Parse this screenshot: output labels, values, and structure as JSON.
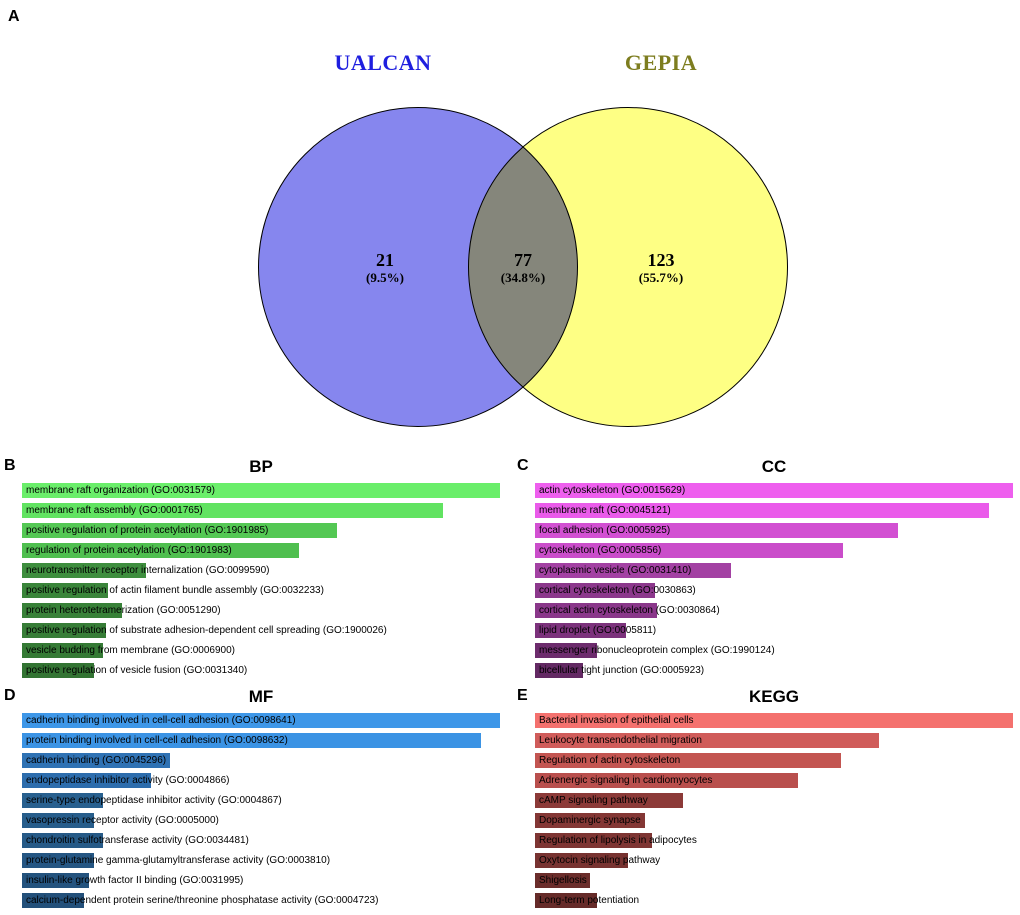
{
  "venn": {
    "panel_label": "A",
    "left_title": "UALCAN",
    "right_title": "GEPIA",
    "left_title_color": "#1f1fdf",
    "right_title_color": "#7d7d1f",
    "left_fill": "#8686ee",
    "right_fill": "#feff84",
    "left_count": "21",
    "left_pct": "(9.5%)",
    "overlap_count": "77",
    "overlap_pct": "(34.8%)",
    "right_count": "123",
    "right_pct": "(55.7%)"
  },
  "chart_data": [
    {
      "type": "venn",
      "panel": "A",
      "groups": [
        {
          "name": "UALCAN",
          "only": 21,
          "only_pct": "9.5%"
        },
        {
          "name": "GEPIA",
          "only": 123,
          "only_pct": "55.7%"
        }
      ],
      "overlap": 77,
      "overlap_pct": "34.8%"
    },
    {
      "type": "bar",
      "panel": "B",
      "title": "BP",
      "orientation": "horizontal",
      "values_are_relative": true,
      "categories": [
        "membrane raft organization (GO:0031579)",
        "membrane raft assembly (GO:0001765)",
        "positive regulation of protein acetylation (GO:1901985)",
        "regulation of protein acetylation (GO:1901983)",
        "neurotransmitter receptor internalization (GO:0099590)",
        "positive regulation of actin filament bundle assembly (GO:0032233)",
        "protein heterotetramerization (GO:0051290)",
        "positive regulation of substrate adhesion-dependent cell spreading (GO:1900026)",
        "vesicle budding from membrane (GO:0006900)",
        "positive regulation of vesicle fusion (GO:0031340)"
      ],
      "values": [
        1.0,
        0.88,
        0.66,
        0.58,
        0.26,
        0.18,
        0.21,
        0.175,
        0.17,
        0.15
      ],
      "colors": [
        "#6aee6a",
        "#61e361",
        "#54c854",
        "#4fbf4f",
        "#3e8e3e",
        "#3a853a",
        "#388138",
        "#377d37",
        "#357a35",
        "#337433"
      ]
    },
    {
      "type": "bar",
      "panel": "C",
      "title": "CC",
      "orientation": "horizontal",
      "values_are_relative": true,
      "categories": [
        "actin cytoskeleton (GO:0015629)",
        "membrane raft (GO:0045121)",
        "focal adhesion (GO:0005925)",
        "cytoskeleton (GO:0005856)",
        "cytoplasmic vesicle (GO:0031410)",
        "cortical cytoskeleton (GO:0030863)",
        "cortical actin cytoskeleton (GO:0030864)",
        "lipid droplet (GO:0005811)",
        "messenger ribonucleoprotein complex (GO:1990124)",
        "bicellular tight junction (GO:0005923)"
      ],
      "values": [
        1.0,
        0.95,
        0.76,
        0.645,
        0.41,
        0.25,
        0.256,
        0.19,
        0.13,
        0.1
      ],
      "colors": [
        "#ee5fee",
        "#ea5bea",
        "#d250d2",
        "#ca4dca",
        "#a341a3",
        "#8c388c",
        "#8a378a",
        "#7c327c",
        "#6d2c6d",
        "#632963"
      ]
    },
    {
      "type": "bar",
      "panel": "D",
      "title": "MF",
      "orientation": "horizontal",
      "values_are_relative": true,
      "categories": [
        "cadherin binding involved in cell-cell adhesion (GO:0098641)",
        "protein binding involved in cell-cell adhesion (GO:0098632)",
        "cadherin binding (GO:0045296)",
        "endopeptidase inhibitor activity (GO:0004866)",
        "serine-type endopeptidase inhibitor activity (GO:0004867)",
        "vasopressin receptor activity (GO:0005000)",
        "chondroitin sulfotransferase activity (GO:0034481)",
        "protein-glutamine gamma-glutamyltransferase activity (GO:0003810)",
        "insulin-like growth factor II binding (GO:0031995)",
        "calcium-dependent protein serine/threonine phosphatase activity (GO:0004723)"
      ],
      "values": [
        1.0,
        0.96,
        0.31,
        0.27,
        0.17,
        0.15,
        0.17,
        0.15,
        0.14,
        0.13
      ],
      "colors": [
        "#3e97e8",
        "#3b93e4",
        "#2f72b4",
        "#2d6dad",
        "#28608f",
        "#275d8b",
        "#265a87",
        "#255683",
        "#24537e",
        "#23507a"
      ]
    },
    {
      "type": "bar",
      "panel": "E",
      "title": "KEGG",
      "orientation": "horizontal",
      "values_are_relative": true,
      "categories": [
        "Bacterial invasion of epithelial cells",
        "Leukocyte transendothelial migration",
        "Regulation of actin cytoskeleton",
        "Adrenergic signaling in cardiomyocytes",
        "cAMP signaling pathway",
        "Dopaminergic synapse",
        "Regulation of lipolysis in adipocytes",
        "Oxytocin signaling pathway",
        "Shigellosis",
        "Long-term potentiation"
      ],
      "values": [
        1.0,
        0.72,
        0.64,
        0.55,
        0.31,
        0.23,
        0.245,
        0.195,
        0.115,
        0.13
      ],
      "colors": [
        "#f4716e",
        "#d05c5a",
        "#c35551",
        "#b94f4d",
        "#8c3a38",
        "#843735",
        "#7e3533",
        "#783331",
        "#6b2d2b",
        "#662b29"
      ]
    }
  ]
}
